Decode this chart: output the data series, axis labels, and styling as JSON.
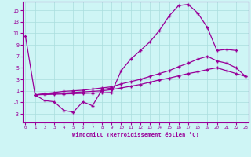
{
  "xlabel": "Windchill (Refroidissement éolien,°C)",
  "line_color": "#990099",
  "bg_color": "#cef5f5",
  "grid_color": "#aadddd",
  "yticks": [
    -3,
    -1,
    1,
    3,
    5,
    7,
    9,
    11,
    13,
    15
  ],
  "ylim": [
    -4.5,
    16.5
  ],
  "xlim": [
    -0.3,
    23.3
  ],
  "line1_x": [
    0,
    1,
    2,
    3,
    4,
    5,
    6,
    7,
    8,
    9
  ],
  "line1_y": [
    10.5,
    0.3,
    -0.7,
    -0.9,
    -2.4,
    -2.7,
    -0.9,
    -1.6,
    1.2,
    1.5
  ],
  "line2_x": [
    1,
    2,
    3,
    4,
    5,
    6,
    7,
    8,
    9,
    10,
    11,
    12,
    13,
    14,
    15,
    16,
    17,
    18,
    19,
    20,
    21,
    22
  ],
  "line2_y": [
    0.3,
    0.35,
    0.4,
    0.45,
    0.5,
    0.55,
    0.6,
    0.65,
    0.7,
    4.5,
    6.5,
    8.0,
    9.5,
    11.5,
    14.0,
    15.8,
    16.0,
    14.5,
    12.0,
    8.0,
    8.2,
    8.0
  ],
  "line3_x": [
    1,
    2,
    3,
    4,
    5,
    6,
    7,
    8,
    9,
    10,
    11,
    12,
    13,
    14,
    15,
    16,
    17,
    18,
    19,
    20,
    21,
    22,
    23
  ],
  "line3_y": [
    0.3,
    0.5,
    0.7,
    0.9,
    1.0,
    1.1,
    1.3,
    1.5,
    1.7,
    2.2,
    2.6,
    3.0,
    3.5,
    4.0,
    4.5,
    5.2,
    5.8,
    6.5,
    7.0,
    6.2,
    5.8,
    5.0,
    3.5
  ],
  "line4_x": [
    1,
    2,
    3,
    4,
    5,
    6,
    7,
    8,
    9,
    10,
    11,
    12,
    13,
    14,
    15,
    16,
    17,
    18,
    19,
    20,
    21,
    22,
    23
  ],
  "line4_y": [
    0.3,
    0.4,
    0.5,
    0.6,
    0.7,
    0.8,
    0.9,
    1.0,
    1.2,
    1.5,
    1.8,
    2.1,
    2.5,
    2.9,
    3.2,
    3.6,
    4.0,
    4.3,
    4.7,
    5.0,
    4.5,
    4.0,
    3.5
  ]
}
